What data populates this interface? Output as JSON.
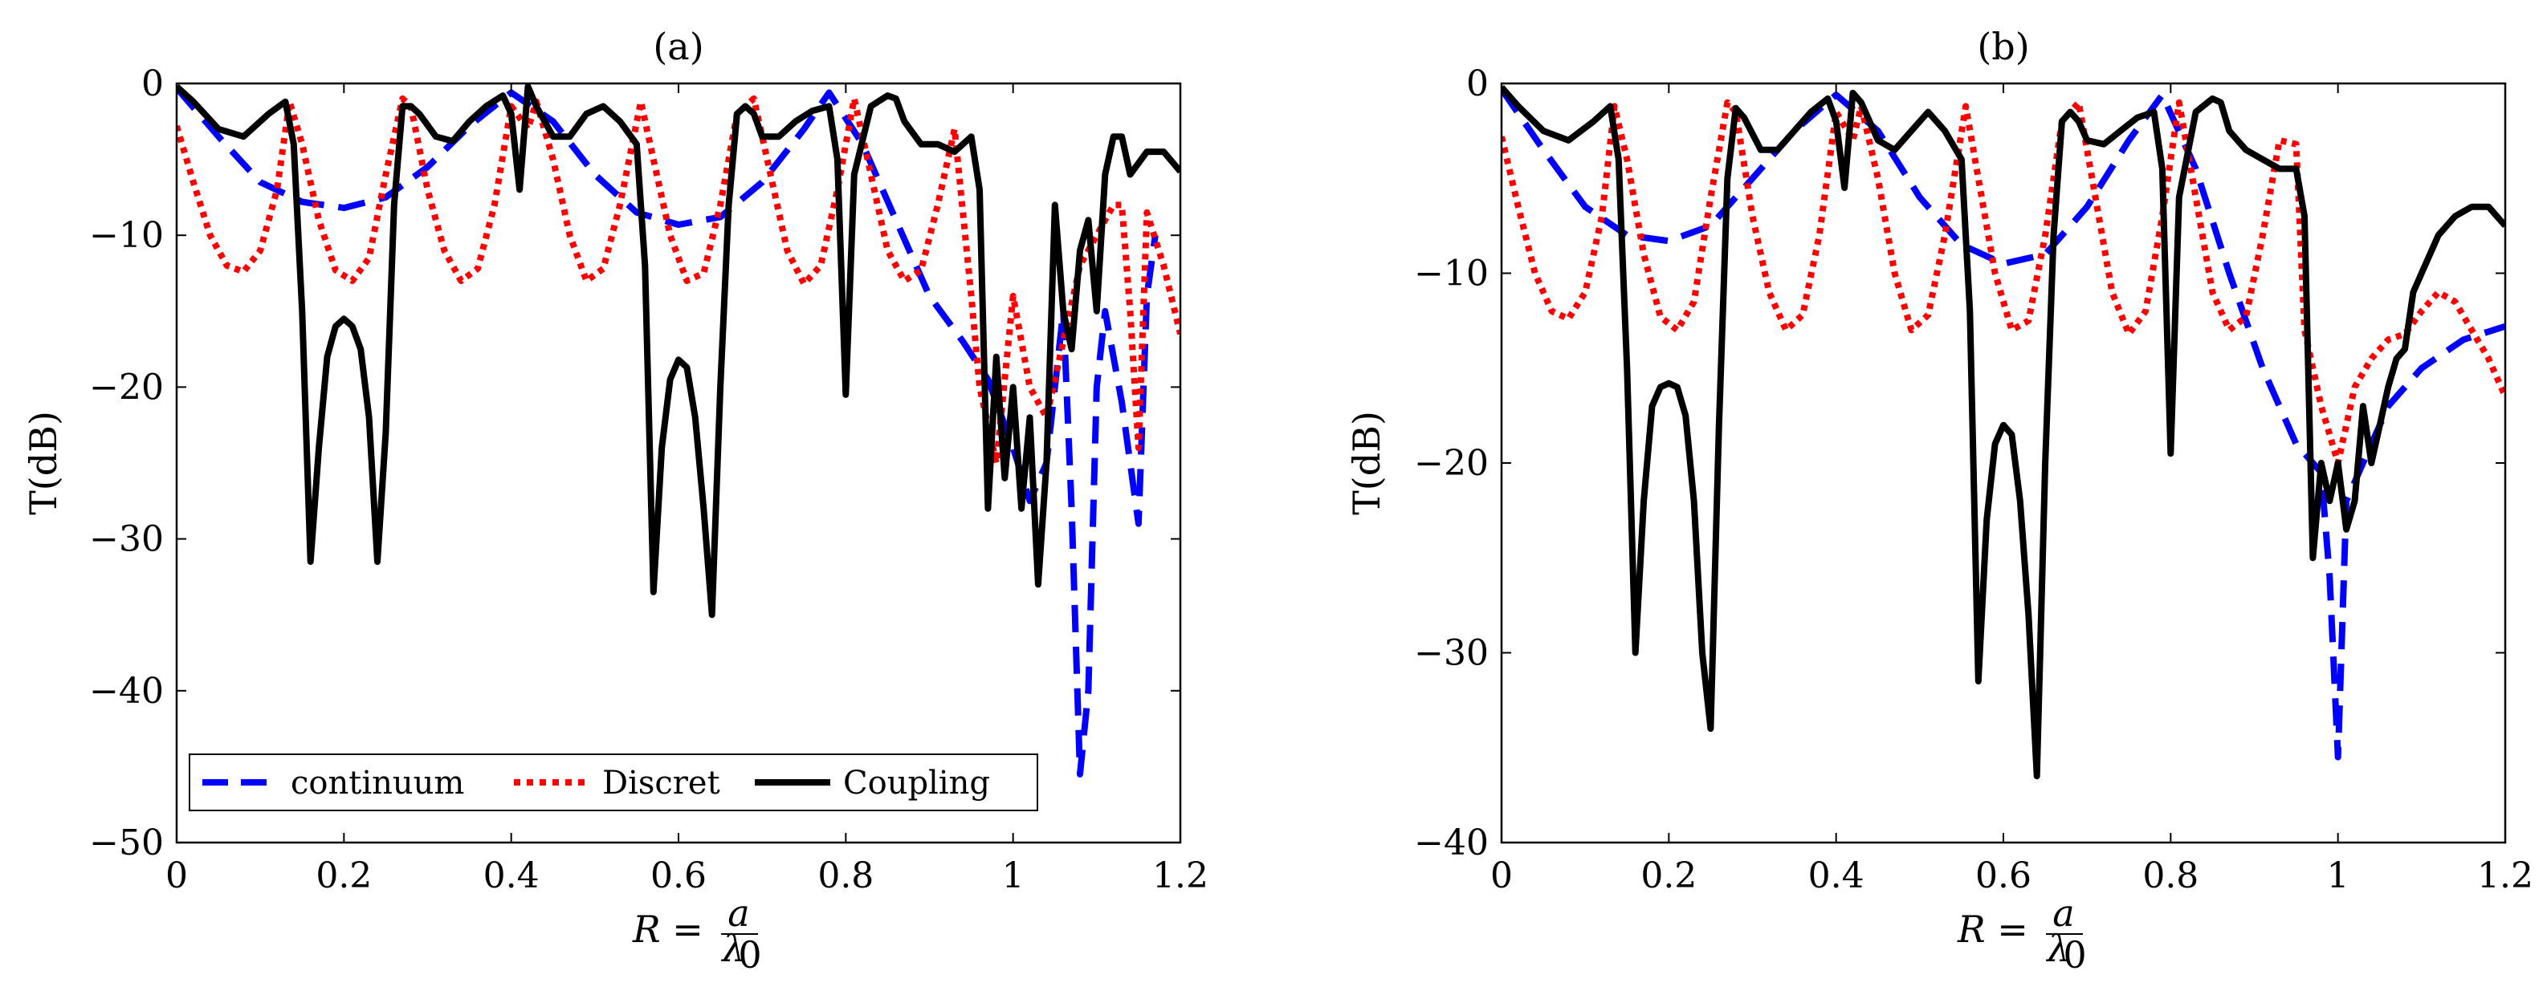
{
  "figure": {
    "xlabel_prefix": "R = ",
    "xlabel_num": "a",
    "xlabel_den": "λ",
    "xlabel_den_sub": "0"
  },
  "legend": {
    "continuum": "continuum",
    "discret": "Discret",
    "coupling": "Coupling"
  },
  "series_styles": [
    {
      "name": "continuum",
      "color": "#0000ff",
      "dash": "dashed"
    },
    {
      "name": "Discret",
      "color": "#ff0000",
      "dash": "dotted"
    },
    {
      "name": "Coupling",
      "color": "#000000",
      "dash": "solid"
    }
  ],
  "chart_data": [
    {
      "type": "line",
      "title": "(a)",
      "xlabel": "R = a/λ0",
      "ylabel": "T(dB)",
      "xlim": [
        0,
        1.2
      ],
      "ylim": [
        -50,
        0
      ],
      "xticks": [
        0,
        0.2,
        0.4,
        0.6,
        0.8,
        1,
        1.2
      ],
      "xtick_labels": [
        "0",
        "0.2",
        "0.4",
        "0.6",
        "0.8",
        "1",
        "1.2"
      ],
      "yticks": [
        0,
        -10,
        -20,
        -30,
        -40,
        -50
      ],
      "ytick_labels": [
        "0",
        "−10",
        "−20",
        "−30",
        "−40",
        "−50"
      ],
      "legend_position": "bottom-left",
      "series": [
        {
          "name": "continuum",
          "x": [
            0,
            0.05,
            0.1,
            0.15,
            0.2,
            0.25,
            0.3,
            0.35,
            0.4,
            0.45,
            0.5,
            0.55,
            0.6,
            0.65,
            0.7,
            0.75,
            0.78,
            0.82,
            0.86,
            0.9,
            0.94,
            0.97,
            1.0,
            1.02,
            1.04,
            1.06,
            1.07,
            1.08,
            1.09,
            1.1,
            1.11,
            1.12,
            1.13,
            1.14,
            1.15,
            1.16,
            1.17
          ],
          "y": [
            -0.3,
            -3.5,
            -6.5,
            -7.8,
            -8.2,
            -7.5,
            -5.5,
            -2.8,
            -0.6,
            -2.5,
            -6,
            -8.5,
            -9.3,
            -8.8,
            -6.5,
            -3,
            -0.6,
            -4,
            -9,
            -14,
            -17,
            -19.5,
            -24,
            -27.5,
            -25,
            -15,
            -28,
            -45.5,
            -40,
            -20,
            -15,
            -18,
            -21,
            -25,
            -29,
            -14,
            -10
          ]
        },
        {
          "name": "Discret",
          "x": [
            0,
            0.02,
            0.04,
            0.06,
            0.08,
            0.1,
            0.12,
            0.135,
            0.15,
            0.17,
            0.19,
            0.21,
            0.23,
            0.25,
            0.27,
            0.28,
            0.3,
            0.32,
            0.34,
            0.36,
            0.38,
            0.4,
            0.42,
            0.43,
            0.45,
            0.47,
            0.49,
            0.51,
            0.53,
            0.555,
            0.57,
            0.59,
            0.61,
            0.63,
            0.65,
            0.67,
            0.69,
            0.71,
            0.73,
            0.75,
            0.77,
            0.79,
            0.81,
            0.83,
            0.85,
            0.87,
            0.89,
            0.91,
            0.93,
            0.95,
            0.96,
            0.98,
            1.0,
            1.02,
            1.04,
            1.06,
            1.08,
            1.1,
            1.12,
            1.13,
            1.14,
            1.15,
            1.16,
            1.18,
            1.2
          ],
          "y": [
            -2.8,
            -6.5,
            -10,
            -12,
            -12.4,
            -11,
            -7,
            -1.2,
            -4,
            -9,
            -12.3,
            -13,
            -11.5,
            -6,
            -1,
            -1.5,
            -7,
            -11,
            -13,
            -12.2,
            -8,
            -1.5,
            -3,
            -1.2,
            -5,
            -10,
            -13,
            -12.2,
            -8,
            -1.2,
            -5,
            -10,
            -13,
            -12.5,
            -8,
            -2,
            -1,
            -6,
            -11,
            -13.2,
            -12,
            -7,
            -1,
            -6,
            -11,
            -13,
            -12.3,
            -8,
            -3,
            -14,
            -20,
            -25,
            -14,
            -20,
            -22,
            -17,
            -12,
            -10,
            -8,
            -8,
            -15,
            -24,
            -8.5,
            -12,
            -16.5
          ]
        },
        {
          "name": "Coupling",
          "x": [
            0,
            0.02,
            0.05,
            0.08,
            0.11,
            0.13,
            0.14,
            0.15,
            0.16,
            0.17,
            0.18,
            0.19,
            0.2,
            0.21,
            0.22,
            0.23,
            0.24,
            0.25,
            0.26,
            0.27,
            0.28,
            0.29,
            0.31,
            0.33,
            0.35,
            0.37,
            0.39,
            0.4,
            0.41,
            0.42,
            0.43,
            0.45,
            0.47,
            0.49,
            0.51,
            0.53,
            0.55,
            0.56,
            0.57,
            0.58,
            0.59,
            0.6,
            0.61,
            0.62,
            0.63,
            0.64,
            0.65,
            0.66,
            0.67,
            0.68,
            0.69,
            0.7,
            0.72,
            0.74,
            0.76,
            0.78,
            0.79,
            0.8,
            0.81,
            0.83,
            0.85,
            0.86,
            0.87,
            0.89,
            0.91,
            0.93,
            0.95,
            0.96,
            0.97,
            0.98,
            0.99,
            1.0,
            1.01,
            1.02,
            1.03,
            1.04,
            1.05,
            1.06,
            1.07,
            1.08,
            1.09,
            1.1,
            1.11,
            1.12,
            1.13,
            1.14,
            1.16,
            1.18,
            1.2
          ],
          "y": [
            -0.2,
            -1.2,
            -3,
            -3.5,
            -2,
            -1.2,
            -4,
            -15,
            -31.5,
            -24,
            -18,
            -16,
            -15.5,
            -16,
            -17.5,
            -22,
            -31.5,
            -23,
            -8,
            -1.5,
            -1.5,
            -2,
            -3.5,
            -3.8,
            -2.5,
            -1.5,
            -0.8,
            -2,
            -7,
            -0.2,
            -1.5,
            -3.5,
            -3.5,
            -2,
            -1.5,
            -2.5,
            -4,
            -12,
            -33.5,
            -24,
            -19.5,
            -18.2,
            -18.7,
            -22,
            -28,
            -35,
            -20,
            -8,
            -2,
            -1.5,
            -2,
            -3.5,
            -3.5,
            -2.5,
            -1.8,
            -1.5,
            -5,
            -20.5,
            -6,
            -1.5,
            -0.8,
            -1,
            -2.5,
            -4,
            -4,
            -4.5,
            -3.5,
            -7,
            -28,
            -18,
            -26,
            -20,
            -28,
            -22,
            -33,
            -25,
            -8,
            -15,
            -17.5,
            -11,
            -9,
            -15,
            -6,
            -3.5,
            -3.5,
            -6,
            -4.5,
            -4.5,
            -5.8
          ]
        }
      ]
    },
    {
      "type": "line",
      "title": "(b)",
      "xlabel": "R = a/λ0",
      "ylabel": "T(dB)",
      "xlim": [
        0,
        1.2
      ],
      "ylim": [
        -40,
        0
      ],
      "xticks": [
        0,
        0.2,
        0.4,
        0.6,
        0.8,
        1,
        1.2
      ],
      "xtick_labels": [
        "0",
        "0.2",
        "0.4",
        "0.6",
        "0.8",
        "1",
        "1.2"
      ],
      "yticks": [
        0,
        -10,
        -20,
        -30,
        -40
      ],
      "ytick_labels": [
        "0",
        "−10",
        "−20",
        "−30",
        "−40"
      ],
      "legend_position": "none",
      "series": [
        {
          "name": "continuum",
          "x": [
            0,
            0.05,
            0.1,
            0.15,
            0.2,
            0.25,
            0.3,
            0.35,
            0.4,
            0.45,
            0.5,
            0.55,
            0.6,
            0.65,
            0.7,
            0.75,
            0.79,
            0.83,
            0.87,
            0.91,
            0.95,
            0.98,
            0.99,
            1.0,
            1.01,
            1.03,
            1.06,
            1.1,
            1.15,
            1.2
          ],
          "y": [
            -0.3,
            -3.5,
            -6.5,
            -8,
            -8.3,
            -7.5,
            -5,
            -2.5,
            -0.6,
            -2.5,
            -6,
            -8.5,
            -9.5,
            -9,
            -6.5,
            -3,
            -0.6,
            -4.5,
            -10,
            -15,
            -19,
            -20.5,
            -26,
            -35.5,
            -22,
            -20,
            -17,
            -15,
            -13.5,
            -12.8
          ]
        },
        {
          "name": "Discret",
          "x": [
            0,
            0.02,
            0.04,
            0.06,
            0.08,
            0.1,
            0.12,
            0.135,
            0.15,
            0.17,
            0.19,
            0.21,
            0.23,
            0.25,
            0.27,
            0.28,
            0.3,
            0.32,
            0.34,
            0.36,
            0.38,
            0.4,
            0.42,
            0.43,
            0.45,
            0.47,
            0.49,
            0.51,
            0.53,
            0.555,
            0.57,
            0.59,
            0.61,
            0.63,
            0.65,
            0.67,
            0.69,
            0.71,
            0.73,
            0.75,
            0.77,
            0.79,
            0.81,
            0.83,
            0.85,
            0.87,
            0.89,
            0.91,
            0.93,
            0.95,
            0.96,
            0.98,
            1.0,
            1.02,
            1.04,
            1.06,
            1.08,
            1.1,
            1.12,
            1.14,
            1.16,
            1.18,
            1.2
          ],
          "y": [
            -2.8,
            -6.5,
            -10,
            -12,
            -12.4,
            -11,
            -7,
            -1.2,
            -4,
            -9,
            -12.3,
            -13,
            -11.5,
            -6,
            -1,
            -1.5,
            -7,
            -11,
            -13,
            -12.2,
            -8,
            -1.5,
            -3,
            -1.2,
            -5,
            -10,
            -13,
            -12.2,
            -8,
            -1.2,
            -5,
            -10,
            -13,
            -12.5,
            -8,
            -2,
            -1,
            -6,
            -11,
            -13.2,
            -12,
            -7,
            -1,
            -6,
            -11,
            -13,
            -12.3,
            -8,
            -3,
            -3.2,
            -13,
            -17,
            -20,
            -16,
            -14.5,
            -13.5,
            -13.2,
            -12,
            -11,
            -11.5,
            -13,
            -14.5,
            -16.5
          ]
        },
        {
          "name": "Coupling",
          "x": [
            0,
            0.02,
            0.05,
            0.08,
            0.11,
            0.13,
            0.14,
            0.15,
            0.16,
            0.17,
            0.18,
            0.19,
            0.2,
            0.21,
            0.22,
            0.23,
            0.24,
            0.25,
            0.26,
            0.27,
            0.28,
            0.29,
            0.31,
            0.33,
            0.35,
            0.37,
            0.39,
            0.4,
            0.41,
            0.42,
            0.43,
            0.45,
            0.47,
            0.49,
            0.51,
            0.53,
            0.55,
            0.56,
            0.57,
            0.58,
            0.59,
            0.6,
            0.61,
            0.62,
            0.63,
            0.64,
            0.65,
            0.66,
            0.67,
            0.68,
            0.69,
            0.7,
            0.72,
            0.74,
            0.76,
            0.78,
            0.79,
            0.8,
            0.81,
            0.83,
            0.85,
            0.86,
            0.87,
            0.89,
            0.91,
            0.93,
            0.95,
            0.96,
            0.97,
            0.98,
            0.99,
            1.0,
            1.01,
            1.02,
            1.03,
            1.04,
            1.05,
            1.06,
            1.07,
            1.08,
            1.09,
            1.1,
            1.12,
            1.14,
            1.16,
            1.18,
            1.2
          ],
          "y": [
            -0.2,
            -1.2,
            -2.5,
            -3,
            -2,
            -1.2,
            -4,
            -15,
            -30,
            -22,
            -17,
            -16,
            -15.8,
            -16,
            -17.5,
            -22,
            -30,
            -34,
            -18,
            -5,
            -1.3,
            -1.8,
            -3.5,
            -3.5,
            -2.5,
            -1.5,
            -0.8,
            -2,
            -5.5,
            -0.5,
            -1,
            -3,
            -3.5,
            -2.5,
            -1.5,
            -2.5,
            -4,
            -12,
            -31.5,
            -23,
            -19,
            -18,
            -18.5,
            -22,
            -28,
            -36.5,
            -20,
            -8,
            -2,
            -1.5,
            -2,
            -3,
            -3.2,
            -2.5,
            -1.8,
            -1.5,
            -4.5,
            -19.5,
            -6,
            -1.5,
            -0.8,
            -1,
            -2.5,
            -3.5,
            -4,
            -4.5,
            -4.5,
            -7,
            -25,
            -20,
            -22,
            -20,
            -23.5,
            -22,
            -17,
            -20,
            -18,
            -16,
            -14.5,
            -14,
            -11,
            -10,
            -8,
            -7,
            -6.5,
            -6.5,
            -7.5
          ]
        }
      ]
    }
  ]
}
